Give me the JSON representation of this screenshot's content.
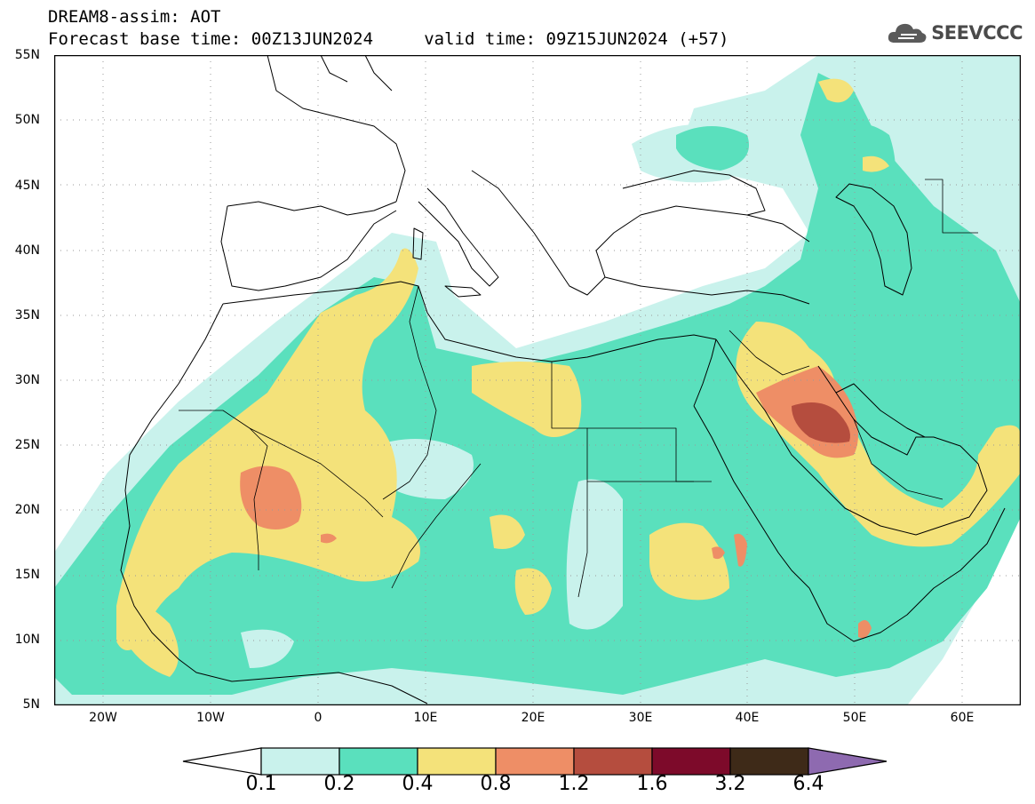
{
  "header": {
    "line1": "DREAM8-assim: AOT",
    "line2": "Forecast base time: 00Z13JUN2024     valid time: 09Z15JUN2024 (+57)"
  },
  "logo": {
    "text": "SEEVCCC",
    "icon": "cloud-icon"
  },
  "map": {
    "lat_labels": [
      "55N",
      "50N",
      "45N",
      "40N",
      "35N",
      "30N",
      "25N",
      "20N",
      "15N",
      "10N",
      "5N"
    ],
    "lon_labels": [
      "20W",
      "10W",
      "0",
      "10E",
      "20E",
      "30E",
      "40E",
      "50E",
      "60E"
    ],
    "extent": {
      "lon_min": -25,
      "lon_max": 65,
      "lat_min": 5,
      "lat_max": 55
    }
  },
  "colorbar": {
    "labels": [
      "0.1",
      "0.2",
      "0.4",
      "0.8",
      "1.2",
      "1.6",
      "3.2",
      "6.4"
    ],
    "colors": [
      "#ffffff",
      "#c9f2ec",
      "#5ae0bd",
      "#f4e27a",
      "#ee8e66",
      "#b54d3e",
      "#7d0a2a",
      "#3e2a18",
      "#8e6ab0"
    ]
  },
  "legend_colors": {
    "c1": "#c9f2ec",
    "c2": "#5ae0bd",
    "c3": "#f4e27a",
    "c4": "#ee8e66",
    "c5": "#b54d3e"
  }
}
